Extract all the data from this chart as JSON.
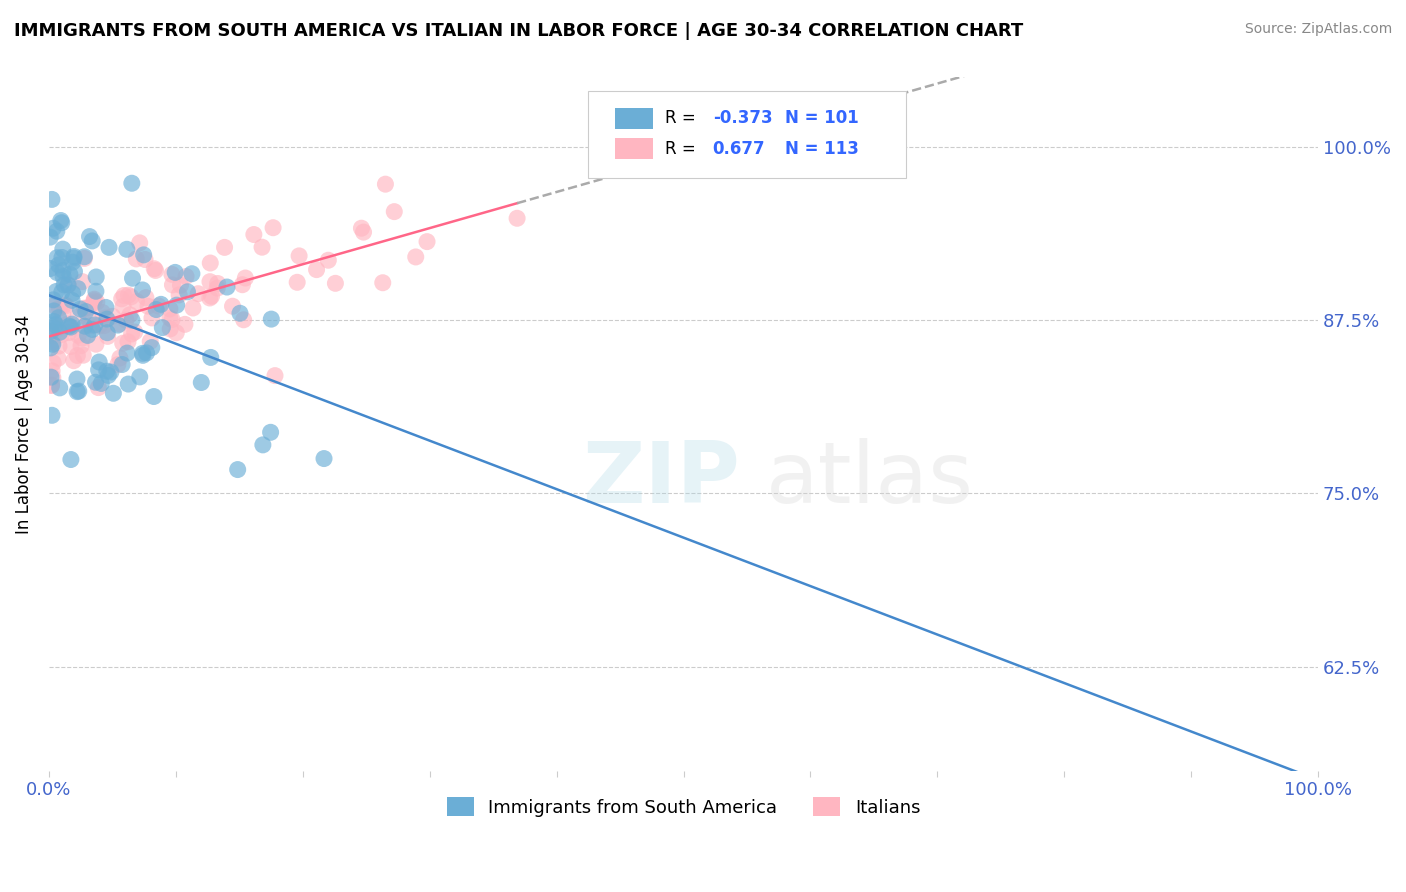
{
  "title": "IMMIGRANTS FROM SOUTH AMERICA VS ITALIAN IN LABOR FORCE | AGE 30-34 CORRELATION CHART",
  "source": "Source: ZipAtlas.com",
  "ylabel": "In Labor Force | Age 30-34",
  "yticks": [
    0.625,
    0.75,
    0.875,
    1.0
  ],
  "ytick_labels": [
    "62.5%",
    "75.0%",
    "87.5%",
    "100.0%"
  ],
  "r_blue": -0.373,
  "n_blue": 101,
  "r_pink": 0.677,
  "n_pink": 113,
  "blue_color": "#6baed6",
  "pink_color": "#ffb6c1",
  "blue_line_color": "#4488cc",
  "pink_line_color": "#ff6688",
  "legend_labels": [
    "Immigrants from South America",
    "Italians"
  ],
  "xlim": [
    0,
    1.0
  ],
  "ylim": [
    0.55,
    1.05
  ]
}
